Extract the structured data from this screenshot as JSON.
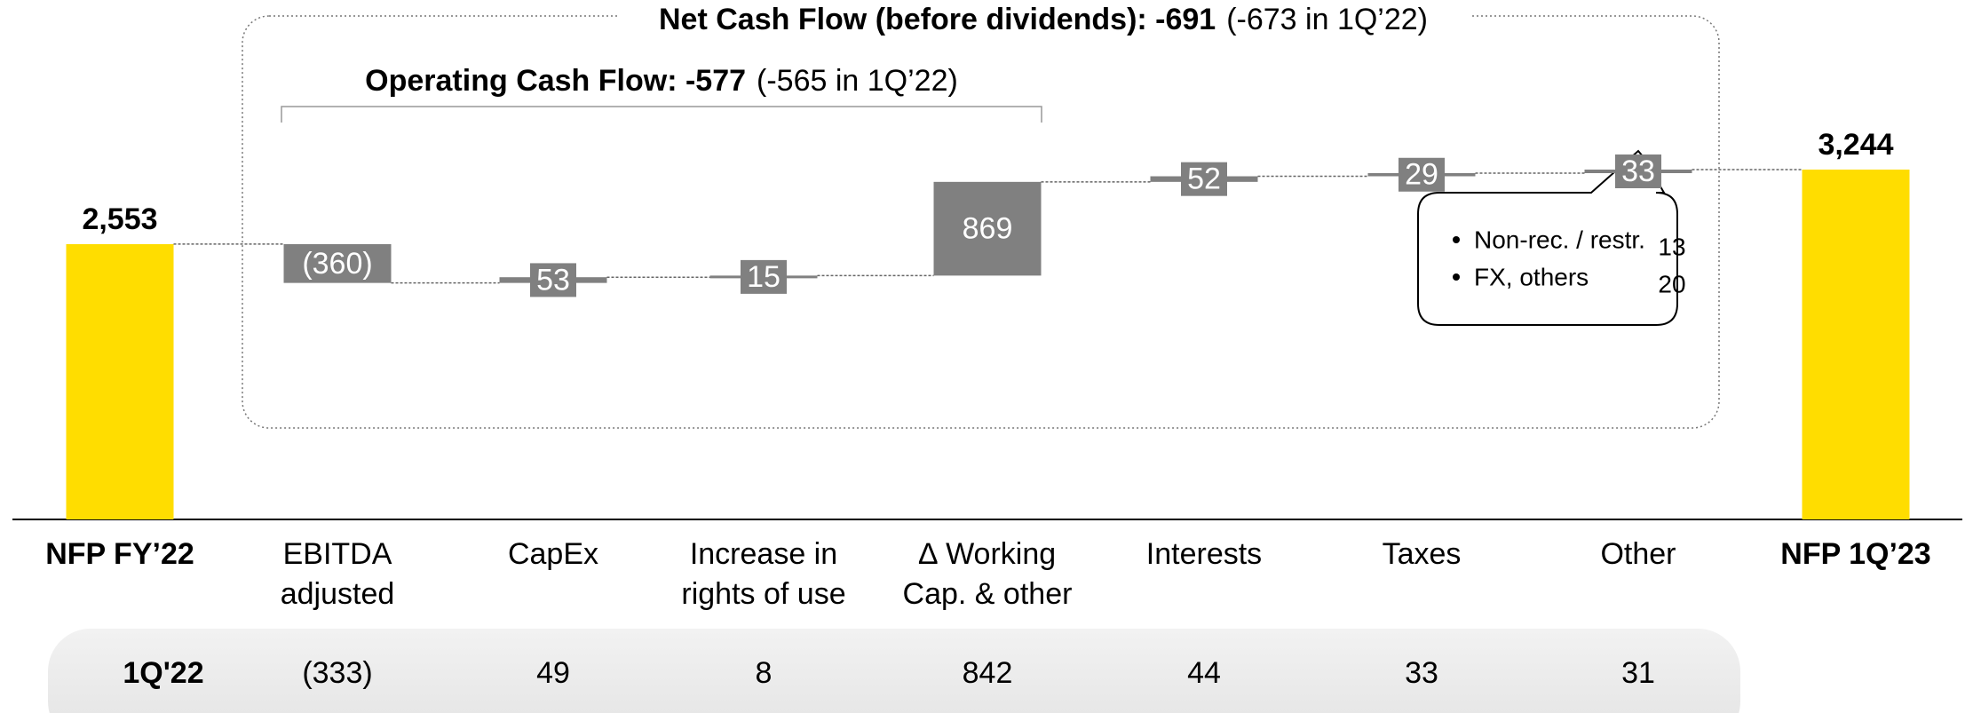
{
  "chart_data": {
    "type": "waterfall",
    "categories": [
      "NFP FY’22",
      "EBITDA adjusted",
      "CapEx",
      "Increase in rights of use",
      "∆ Working Cap. & other",
      "Interests",
      "Taxes",
      "Other",
      "NFP 1Q’23"
    ],
    "values": [
      2553,
      -360,
      53,
      15,
      869,
      52,
      29,
      33,
      3244
    ],
    "value_labels": [
      "2,553",
      "(360)",
      "53",
      "15",
      "869",
      "52",
      "29",
      "33",
      "3,244"
    ],
    "measure": [
      "total",
      "relative",
      "relative",
      "relative",
      "relative",
      "relative",
      "relative",
      "relative",
      "total"
    ],
    "color": "#808080",
    "total_color": "#ffdd00",
    "ylim": [
      0,
      4800
    ],
    "net_cash_flow": {
      "title": "Net Cash Flow (before dividends): -691",
      "note": "(-673 in 1Q’22)"
    },
    "operating_cash_flow": {
      "title": "Operating Cash Flow: -577",
      "note": "(-565 in 1Q’22)"
    },
    "other_breakdown": [
      {
        "label": "Non-rec. / restr.",
        "value": 13
      },
      {
        "label": "FX, others",
        "value": 20
      }
    ],
    "comparison": {
      "label": "1Q'22",
      "values": [
        -333,
        49,
        8,
        842,
        44,
        33,
        31
      ],
      "value_labels": [
        "(333)",
        "49",
        "8",
        "842",
        "44",
        "33",
        "31"
      ]
    }
  }
}
